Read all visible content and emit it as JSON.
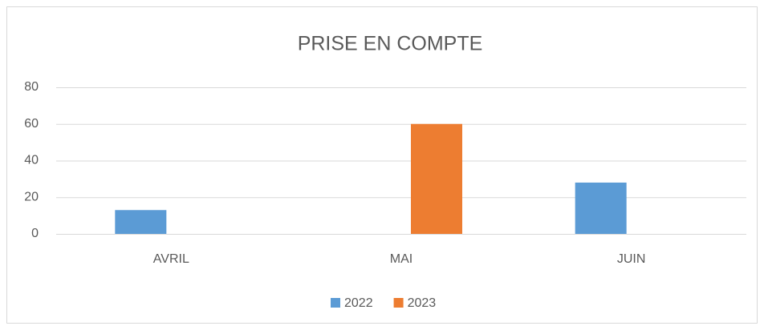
{
  "chart_data": {
    "type": "bar",
    "title": "PRISE EN COMPTE",
    "categories": [
      "AVRIL",
      "MAI",
      "JUIN"
    ],
    "series": [
      {
        "name": "2022",
        "color": "#5b9bd5",
        "values": [
          13,
          0,
          28
        ]
      },
      {
        "name": "2023",
        "color": "#ed7d31",
        "values": [
          0,
          60,
          0
        ]
      }
    ],
    "ylim": [
      0,
      80
    ],
    "yticks": [
      0,
      20,
      40,
      60,
      80
    ],
    "grid": true,
    "legend": "bottom"
  }
}
